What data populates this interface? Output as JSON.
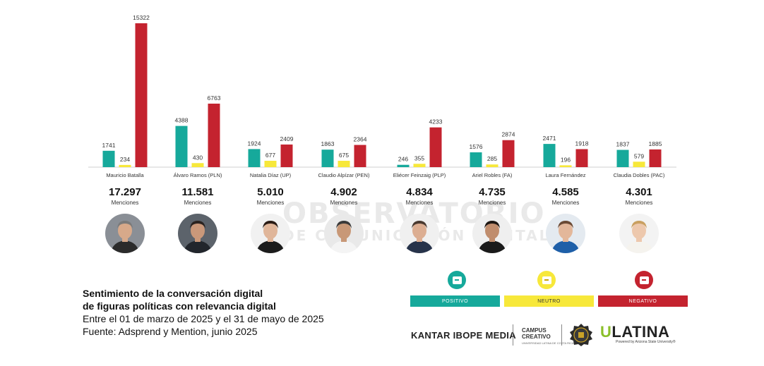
{
  "chart_data": {
    "type": "bar",
    "categories": [
      "Mauricio Batalla",
      "Álvaro Ramos (PLN)",
      "Natalia Díaz (UP)",
      "Claudio Alpízar (PEN)",
      "Eliécer Feinzaig (PLP)",
      "Ariel Robles (FA)",
      "Laura Fernández",
      "Claudia Dobles (PAC)"
    ],
    "series": [
      {
        "name": "POSITIVO",
        "color": "#16a99b",
        "values": [
          1741,
          4388,
          1924,
          1863,
          246,
          1576,
          2471,
          1837
        ]
      },
      {
        "name": "NEUTRO",
        "color": "#f7e83a",
        "values": [
          234,
          430,
          677,
          675,
          355,
          285,
          196,
          579
        ]
      },
      {
        "name": "NEGATIVO",
        "color": "#c4232f",
        "values": [
          15322,
          6763,
          2409,
          2364,
          4233,
          2874,
          1918,
          1885
        ]
      }
    ],
    "ylim": [
      0,
      15322
    ],
    "grid": false,
    "legend_position": "bottom-right"
  },
  "totals": {
    "values": [
      "17.297",
      "11.581",
      "5.010",
      "4.902",
      "4.834",
      "4.735",
      "4.585",
      "4.301"
    ],
    "label": "Menciones"
  },
  "photos": [
    {
      "skin": "#d7a98a",
      "hair": "#7a7a7a",
      "suit": "#2b2b2b",
      "bg": "#8a8f96"
    },
    {
      "skin": "#c9987a",
      "hair": "#2a2320",
      "suit": "#22262c",
      "bg": "#5c636b"
    },
    {
      "skin": "#e0b69a",
      "hair": "#2a1c15",
      "suit": "#1c1c1c",
      "bg": "#f1f1f1"
    },
    {
      "skin": "#c89877",
      "hair": "#3a3a3a",
      "suit": "#f4f4f4",
      "bg": "#e9e9e9"
    },
    {
      "skin": "#dcae92",
      "hair": "#4a3a30",
      "suit": "#27334a",
      "bg": "#f0f0f0"
    },
    {
      "skin": "#c08d6d",
      "hair": "#1d1713",
      "suit": "#1a1a1a",
      "bg": "#efefef"
    },
    {
      "skin": "#e3b79a",
      "hair": "#6b4a34",
      "suit": "#1e5fa8",
      "bg": "#e4eaf0"
    },
    {
      "skin": "#edc8ad",
      "hair": "#c9a061",
      "suit": "#f5f3ee",
      "bg": "#f3f3f3"
    }
  ],
  "watermark": {
    "line1": "OBSERVATORIO",
    "line2": "DE COMUNICACIÓN DIGITAL"
  },
  "legend": {
    "positive": "POSITIVO",
    "neutral": "NEUTRO",
    "negative": "NEGATIVO"
  },
  "footer": {
    "line1": "Sentimiento de la conversación digital",
    "line2": "de figuras políticas con relevancia digital",
    "line3": "Entre el 01 de marzo de 2025 y el 31 de mayo de 2025",
    "line4": "Fuente: Adsprend y Mention, junio 2025"
  },
  "logos": {
    "kantar": "KANTAR IBOPE MEDIA",
    "campus_line1": "CAMPUS",
    "campus_line2": "CREATIVO",
    "campus_sub": "UNIVERSIDAD LATINA DE COSTA RICA",
    "ulatina_u": "U",
    "ulatina_rest": "LATINA",
    "ulatina_sub": "Powered by Arizona State University®"
  }
}
